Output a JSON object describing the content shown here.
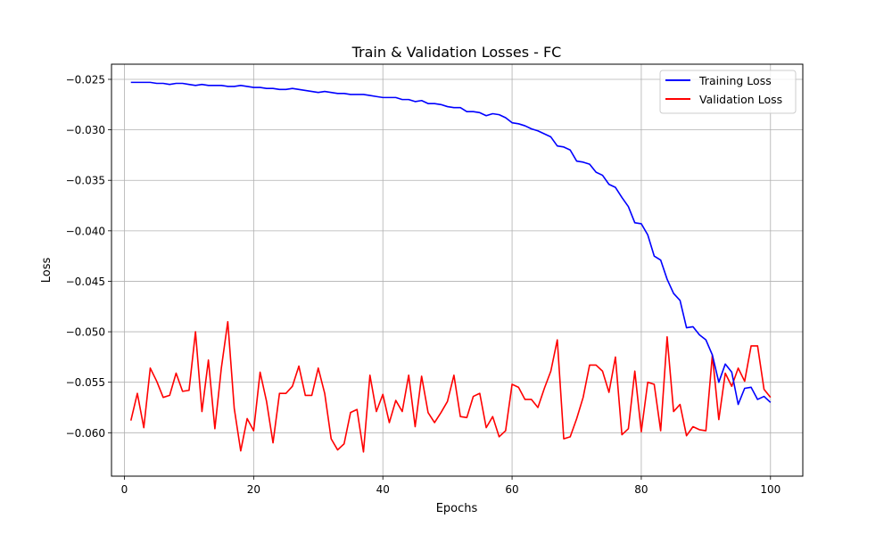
{
  "chart_data": {
    "type": "line",
    "title": "Train & Validation Losses - FC",
    "xlabel": "Epochs",
    "ylabel": "Loss",
    "xlim": [
      -2,
      105
    ],
    "ylim": [
      -0.0643,
      -0.0235
    ],
    "xticks": [
      0,
      20,
      40,
      60,
      80,
      100
    ],
    "xtick_labels": [
      "0",
      "20",
      "40",
      "60",
      "80",
      "100"
    ],
    "yticks": [
      -0.06,
      -0.055,
      -0.05,
      -0.045,
      -0.04,
      -0.035,
      -0.03,
      -0.025
    ],
    "ytick_labels": [
      "−0.060",
      "−0.055",
      "−0.050",
      "−0.045",
      "−0.040",
      "−0.035",
      "−0.030",
      "−0.025"
    ],
    "grid": true,
    "legend_position": "top-right",
    "x": [
      1,
      2,
      3,
      4,
      5,
      6,
      7,
      8,
      9,
      10,
      11,
      12,
      13,
      14,
      15,
      16,
      17,
      18,
      19,
      20,
      21,
      22,
      23,
      24,
      25,
      26,
      27,
      28,
      29,
      30,
      31,
      32,
      33,
      34,
      35,
      36,
      37,
      38,
      39,
      40,
      41,
      42,
      43,
      44,
      45,
      46,
      47,
      48,
      49,
      50,
      51,
      52,
      53,
      54,
      55,
      56,
      57,
      58,
      59,
      60,
      61,
      62,
      63,
      64,
      65,
      66,
      67,
      68,
      69,
      70,
      71,
      72,
      73,
      74,
      75,
      76,
      77,
      78,
      79,
      80,
      81,
      82,
      83,
      84,
      85,
      86,
      87,
      88,
      89,
      90,
      91,
      92,
      93,
      94,
      95,
      96,
      97,
      98,
      99,
      100
    ],
    "series": [
      {
        "name": "Training Loss",
        "color": "#0000ff",
        "values": [
          -0.0253,
          -0.0253,
          -0.0253,
          -0.0253,
          -0.0254,
          -0.0254,
          -0.0255,
          -0.0254,
          -0.0254,
          -0.0255,
          -0.0256,
          -0.0255,
          -0.0256,
          -0.0256,
          -0.0256,
          -0.0257,
          -0.0257,
          -0.0256,
          -0.0257,
          -0.0258,
          -0.0258,
          -0.0259,
          -0.0259,
          -0.026,
          -0.026,
          -0.0259,
          -0.026,
          -0.0261,
          -0.0262,
          -0.0263,
          -0.0262,
          -0.0263,
          -0.0264,
          -0.0264,
          -0.0265,
          -0.0265,
          -0.0265,
          -0.0266,
          -0.0267,
          -0.0268,
          -0.0268,
          -0.0268,
          -0.027,
          -0.027,
          -0.0272,
          -0.0271,
          -0.0274,
          -0.0274,
          -0.0275,
          -0.0277,
          -0.0278,
          -0.0278,
          -0.0282,
          -0.0282,
          -0.0283,
          -0.0286,
          -0.0284,
          -0.0285,
          -0.0288,
          -0.0293,
          -0.0294,
          -0.0296,
          -0.0299,
          -0.0301,
          -0.0304,
          -0.0307,
          -0.0316,
          -0.0317,
          -0.032,
          -0.0331,
          -0.0332,
          -0.0334,
          -0.0342,
          -0.0345,
          -0.0354,
          -0.0357,
          -0.0367,
          -0.0376,
          -0.0392,
          -0.0393,
          -0.0404,
          -0.0425,
          -0.0429,
          -0.0448,
          -0.0462,
          -0.0469,
          -0.0496,
          -0.0495,
          -0.0503,
          -0.0508,
          -0.0523,
          -0.055,
          -0.0532,
          -0.054,
          -0.0572,
          -0.0556,
          -0.0555,
          -0.0567,
          -0.0564,
          -0.057
        ]
      },
      {
        "name": "Validation Loss",
        "color": "#ff0000",
        "values": [
          -0.0588,
          -0.0561,
          -0.0595,
          -0.0536,
          -0.0549,
          -0.0565,
          -0.0563,
          -0.0541,
          -0.0559,
          -0.0558,
          -0.05,
          -0.0579,
          -0.0528,
          -0.0596,
          -0.0536,
          -0.049,
          -0.0576,
          -0.0618,
          -0.0586,
          -0.0598,
          -0.054,
          -0.0569,
          -0.061,
          -0.0561,
          -0.0561,
          -0.0554,
          -0.0534,
          -0.0563,
          -0.0563,
          -0.0536,
          -0.0561,
          -0.0606,
          -0.0617,
          -0.0611,
          -0.058,
          -0.0577,
          -0.0619,
          -0.0543,
          -0.0579,
          -0.0562,
          -0.059,
          -0.0568,
          -0.0579,
          -0.0543,
          -0.0594,
          -0.0544,
          -0.058,
          -0.059,
          -0.058,
          -0.0569,
          -0.0543,
          -0.0584,
          -0.0585,
          -0.0564,
          -0.0561,
          -0.0595,
          -0.0584,
          -0.0604,
          -0.0598,
          -0.0552,
          -0.0555,
          -0.0567,
          -0.0567,
          -0.0575,
          -0.0556,
          -0.0539,
          -0.0508,
          -0.0606,
          -0.0604,
          -0.0586,
          -0.0565,
          -0.0533,
          -0.0533,
          -0.0539,
          -0.056,
          -0.0525,
          -0.0602,
          -0.0596,
          -0.0539,
          -0.0599,
          -0.055,
          -0.0552,
          -0.0598,
          -0.0505,
          -0.0579,
          -0.0572,
          -0.0603,
          -0.0594,
          -0.0597,
          -0.0598,
          -0.0523,
          -0.0587,
          -0.0541,
          -0.0554,
          -0.0536,
          -0.0549,
          -0.0514,
          -0.0514,
          -0.0557,
          -0.0565
        ]
      }
    ]
  }
}
